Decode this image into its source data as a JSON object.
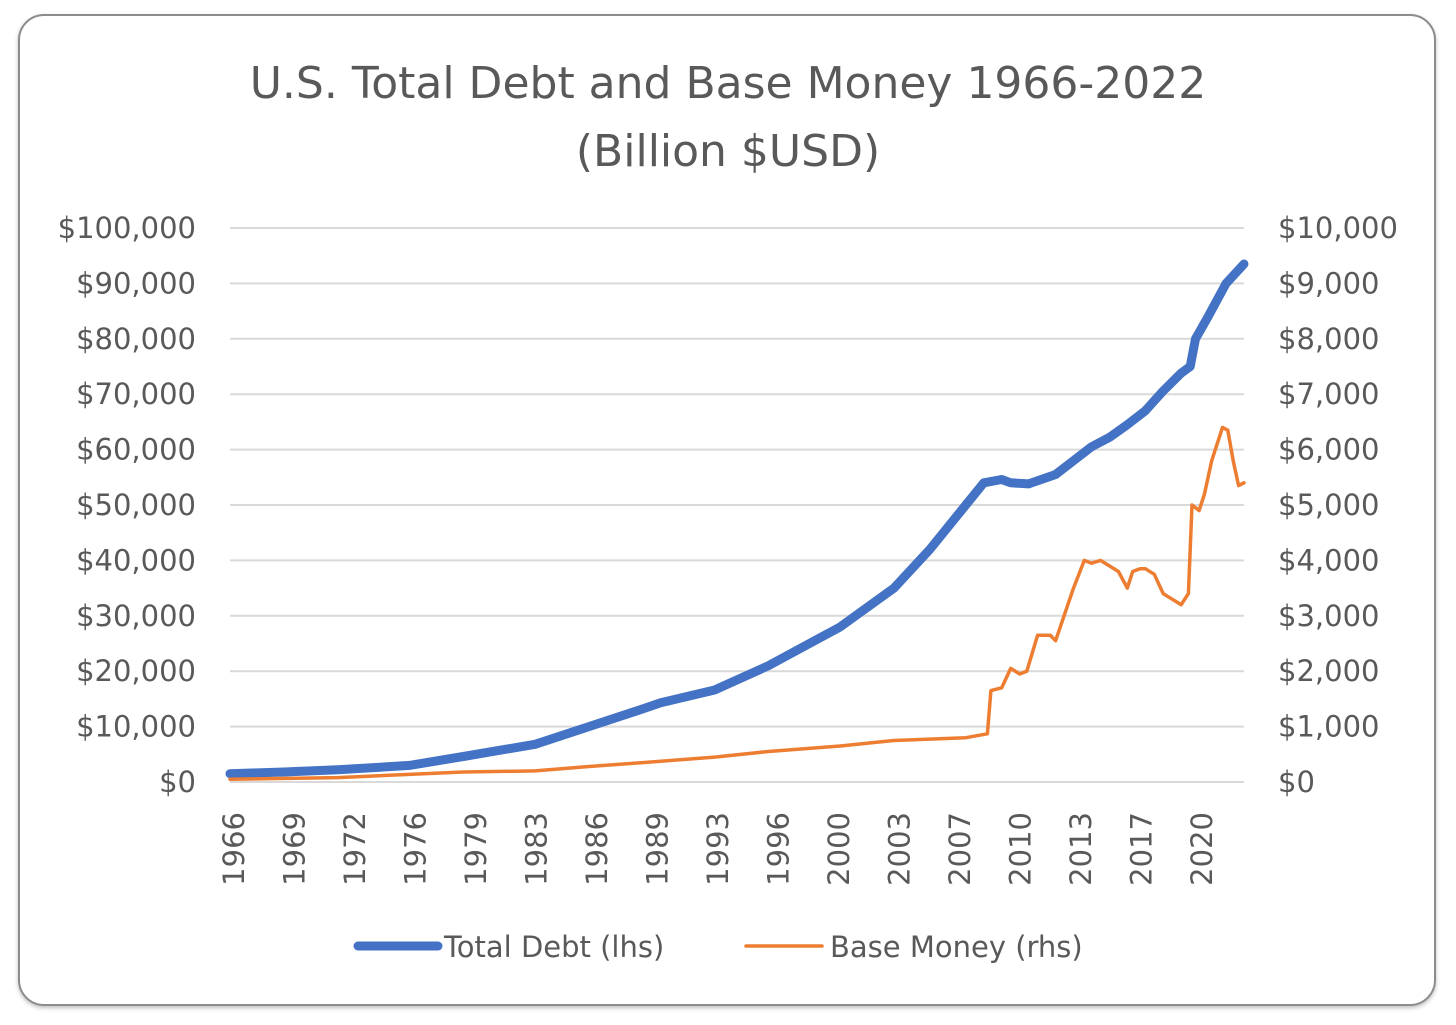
{
  "chart_data": {
    "type": "line",
    "title": [
      "U.S. Total Debt and Base Money 1966-2022",
      "(Billion $USD)"
    ],
    "x_tick_labels": [
      "1966",
      "1969",
      "1972",
      "1976",
      "1979",
      "1983",
      "1986",
      "1989",
      "1993",
      "1996",
      "2000",
      "2003",
      "2007",
      "2010",
      "2013",
      "2017",
      "2020"
    ],
    "x_range": [
      1966,
      2022.5
    ],
    "y_left": {
      "tick_labels": [
        "$0",
        "$10,000",
        "$20,000",
        "$30,000",
        "$40,000",
        "$50,000",
        "$60,000",
        "$70,000",
        "$80,000",
        "$90,000",
        "$100,000"
      ],
      "range": [
        0,
        100000
      ]
    },
    "y_right": {
      "tick_labels": [
        "$0",
        "$1,000",
        "$2,000",
        "$3,000",
        "$4,000",
        "$5,000",
        "$6,000",
        "$7,000",
        "$8,000",
        "$9,000",
        "$10,000"
      ],
      "range": [
        0,
        10000
      ]
    },
    "grid": "horizontal",
    "legend_position": "bottom",
    "series": [
      {
        "name": "Total Debt (lhs)",
        "axis": "left",
        "color": "#4472C4",
        "x": [
          1966,
          1969,
          1972,
          1976,
          1979,
          1983,
          1986,
          1989,
          1990,
          1993,
          1996,
          2000,
          2003,
          2005,
          2007,
          2008,
          2009,
          2009.5,
          2010.5,
          2012,
          2013,
          2014,
          2015,
          2016,
          2017,
          2018,
          2019,
          2019.5,
          2019.8,
          2020.5,
          2021.5,
          2022.5
        ],
        "values": [
          1500,
          1800,
          2200,
          3000,
          4600,
          6800,
          10000,
          13200,
          14300,
          16600,
          21000,
          28000,
          35000,
          42000,
          50000,
          54000,
          54600,
          54000,
          53800,
          55500,
          58000,
          60500,
          62200,
          64500,
          67000,
          70600,
          73800,
          75000,
          80000,
          84000,
          90000,
          93500
        ]
      },
      {
        "name": "Base Money (rhs)",
        "axis": "right",
        "color": "#ED7D31",
        "x": [
          1966,
          1972,
          1979,
          1983,
          1986,
          1989,
          1993,
          1996,
          2000,
          2003,
          2007,
          2008.2,
          2008.4,
          2009,
          2009.5,
          2010,
          2010.4,
          2011,
          2011.7,
          2012,
          2013,
          2013.6,
          2014,
          2014.5,
          2015,
          2015.5,
          2016,
          2016.3,
          2016.7,
          2017,
          2017.5,
          2018,
          2018.5,
          2019,
          2019.4,
          2019.6,
          2020,
          2020.3,
          2020.7,
          2021,
          2021.3,
          2021.6,
          2021.9,
          2022.2,
          2022.5
        ],
        "values": [
          50,
          80,
          180,
          200,
          280,
          350,
          450,
          550,
          650,
          750,
          800,
          870,
          1650,
          1700,
          2050,
          1950,
          2000,
          2650,
          2650,
          2550,
          3500,
          4000,
          3950,
          4000,
          3900,
          3800,
          3500,
          3800,
          3850,
          3850,
          3750,
          3400,
          3300,
          3200,
          3400,
          5000,
          4900,
          5200,
          5800,
          6100,
          6400,
          6350,
          5800,
          5350,
          5400
        ]
      }
    ]
  }
}
